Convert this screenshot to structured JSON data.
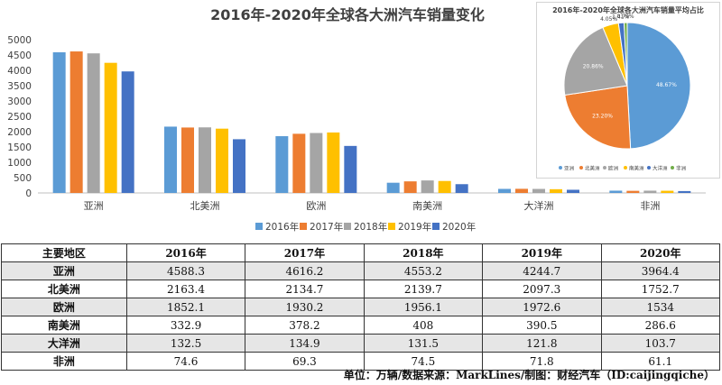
{
  "chart_data": [
    {
      "type": "bar",
      "title": "2016年-2020年全球各大洲汽车销量变化",
      "categories": [
        "亚洲",
        "北美洲",
        "欧洲",
        "南美洲",
        "大洋洲",
        "非洲"
      ],
      "series": [
        {
          "name": "2016年",
          "color": "#5b9bd5",
          "values": [
            4588.3,
            2163.4,
            1852.1,
            332.9,
            132.5,
            74.6
          ]
        },
        {
          "name": "2017年",
          "color": "#ed7d31",
          "values": [
            4616.2,
            2134.7,
            1930.2,
            378.2,
            134.9,
            69.3
          ]
        },
        {
          "name": "2018年",
          "color": "#a5a5a5",
          "values": [
            4553.2,
            2139.7,
            1956.1,
            408,
            131.5,
            74.5
          ]
        },
        {
          "name": "2019年",
          "color": "#ffc000",
          "values": [
            4244.7,
            2097.3,
            1972.6,
            390.5,
            121.8,
            71.8
          ]
        },
        {
          "name": "2020年",
          "color": "#4472c4",
          "values": [
            3964.4,
            1752.7,
            1534,
            286.6,
            103.7,
            61.1
          ]
        }
      ],
      "ylim": [
        0,
        5000
      ],
      "yticks": [
        0,
        500,
        1000,
        1500,
        2000,
        2500,
        3000,
        3500,
        4000,
        4500,
        5000
      ],
      "legend_position": "bottom",
      "grid": false
    },
    {
      "type": "pie",
      "title": "2016年-2020年全球各大洲汽车销量平均占比",
      "labels": [
        "亚洲",
        "北美洲",
        "欧洲",
        "南美洲",
        "大洋洲",
        "非洲"
      ],
      "values": [
        48.67,
        23.2,
        20.86,
        4.05,
        1.41,
        0.79
      ],
      "value_labels": [
        "48.67%",
        "23.20%",
        "20.86%",
        "4.05%",
        "1.41%",
        "0.79%"
      ],
      "colors": [
        "#5b9bd5",
        "#ed7d31",
        "#a5a5a5",
        "#ffc000",
        "#4472c4",
        "#70ad47"
      ],
      "legend_position": "bottom"
    }
  ],
  "table": {
    "headers": [
      "主要地区",
      "2016年",
      "2017年",
      "2018年",
      "2019年",
      "2020年"
    ],
    "rows": [
      [
        "亚洲",
        "4588.3",
        "4616.2",
        "4553.2",
        "4244.7",
        "3964.4"
      ],
      [
        "北美洲",
        "2163.4",
        "2134.7",
        "2139.7",
        "2097.3",
        "1752.7"
      ],
      [
        "欧洲",
        "1852.1",
        "1930.2",
        "1956.1",
        "1972.6",
        "1534"
      ],
      [
        "南美洲",
        "332.9",
        "378.2",
        "408",
        "390.5",
        "286.6"
      ],
      [
        "大洋洲",
        "132.5",
        "134.9",
        "131.5",
        "121.8",
        "103.7"
      ],
      [
        "非洲",
        "74.6",
        "69.3",
        "74.5",
        "71.8",
        "61.1"
      ]
    ]
  },
  "footer": "单位：万辆/数据来源：MarkLines/制图：财经汽车（ID:caijingqiche）"
}
